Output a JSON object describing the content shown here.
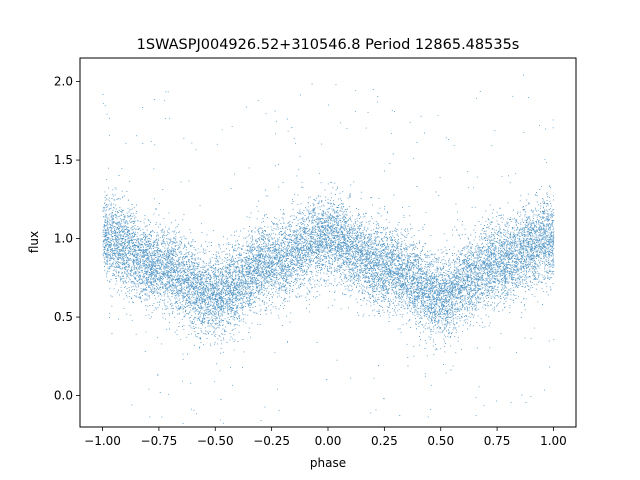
{
  "chart_data": {
    "type": "scatter",
    "title": "1SWASPJ004926.52+310546.8 Period 12865.48535s",
    "xlabel": "phase",
    "ylabel": "flux",
    "xlim": [
      -1.1,
      1.1
    ],
    "ylim": [
      -0.2,
      2.15
    ],
    "xticks": [
      -1.0,
      -0.75,
      -0.5,
      -0.25,
      0.0,
      0.25,
      0.5,
      0.75,
      1.0
    ],
    "xtick_labels": [
      "−1.00",
      "−0.75",
      "−0.50",
      "−0.25",
      "0.00",
      "0.25",
      "0.50",
      "0.75",
      "1.00"
    ],
    "yticks": [
      0.0,
      0.5,
      1.0,
      1.5,
      2.0
    ],
    "ytick_labels": [
      "0.0",
      "0.5",
      "1.0",
      "1.5",
      "2.0"
    ],
    "grid": false,
    "point_color": "#1f77b4",
    "series": [
      {
        "x_range": [
          -1.0,
          1.0
        ],
        "trend_x": [
          -1.0,
          -0.75,
          -0.5,
          -0.25,
          0.0,
          0.25,
          0.5,
          0.75,
          1.0
        ],
        "trend_y": [
          1.0,
          0.82,
          0.63,
          0.85,
          1.0,
          0.82,
          0.63,
          0.85,
          1.0
        ],
        "scatter_sd": 0.13,
        "n_points": 16000
      }
    ]
  }
}
